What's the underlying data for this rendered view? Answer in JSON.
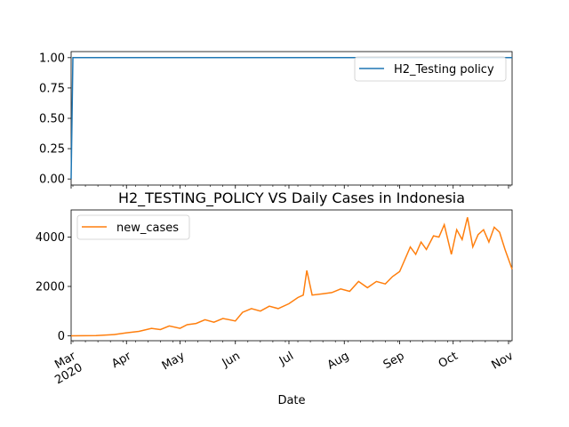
{
  "chart_data": [
    {
      "type": "line",
      "x_unit": "date",
      "ylim": [
        -0.05,
        1.05
      ],
      "yticks": [
        0.0,
        0.25,
        0.5,
        0.75,
        1.0
      ],
      "ytick_labels": [
        "0.00",
        "0.25",
        "0.50",
        "0.75",
        "1.00"
      ],
      "legend": "top-right",
      "grid": false,
      "series": [
        {
          "name": "H2_Testing policy",
          "color": "#1f77b4",
          "x": [
            "2020-03-01",
            "2020-03-02",
            "2020-11-03"
          ],
          "values": [
            0,
            1,
            1
          ]
        }
      ]
    },
    {
      "type": "line",
      "title": "H2_TESTING_POLICY VS Daily Cases in Indonesia",
      "xlabel": "Date",
      "x_unit": "date",
      "xlim": [
        "2020-03-01",
        "2020-11-03"
      ],
      "ylim": [
        -200,
        5100
      ],
      "yticks": [
        0,
        2000,
        4000
      ],
      "ytick_labels": [
        "0",
        "2000",
        "4000"
      ],
      "xtick_labels": [
        "Mar\n2020",
        "Apr",
        "May",
        "Jun",
        "Jul",
        "Aug",
        "Sep",
        "Oct",
        "Nov"
      ],
      "xtick_dates": [
        "2020-03-01",
        "2020-04-01",
        "2020-05-01",
        "2020-06-01",
        "2020-07-01",
        "2020-08-01",
        "2020-09-01",
        "2020-10-01",
        "2020-11-01"
      ],
      "legend": "top-left",
      "grid": false,
      "series": [
        {
          "name": "new_cases",
          "color": "#ff7f0e",
          "x": [
            "2020-03-01",
            "2020-03-15",
            "2020-03-25",
            "2020-04-01",
            "2020-04-08",
            "2020-04-15",
            "2020-04-20",
            "2020-04-25",
            "2020-05-01",
            "2020-05-05",
            "2020-05-10",
            "2020-05-15",
            "2020-05-20",
            "2020-05-25",
            "2020-06-01",
            "2020-06-05",
            "2020-06-10",
            "2020-06-15",
            "2020-06-20",
            "2020-06-25",
            "2020-07-01",
            "2020-07-06",
            "2020-07-09",
            "2020-07-11",
            "2020-07-14",
            "2020-07-20",
            "2020-07-25",
            "2020-07-30",
            "2020-08-04",
            "2020-08-09",
            "2020-08-14",
            "2020-08-19",
            "2020-08-24",
            "2020-08-28",
            "2020-09-01",
            "2020-09-04",
            "2020-09-07",
            "2020-09-10",
            "2020-09-13",
            "2020-09-16",
            "2020-09-20",
            "2020-09-23",
            "2020-09-26",
            "2020-09-30",
            "2020-10-03",
            "2020-10-06",
            "2020-10-09",
            "2020-10-12",
            "2020-10-15",
            "2020-10-18",
            "2020-10-21",
            "2020-10-24",
            "2020-10-27",
            "2020-10-30",
            "2020-11-01",
            "2020-11-03"
          ],
          "values": [
            0,
            5,
            50,
            120,
            180,
            300,
            250,
            400,
            300,
            450,
            500,
            650,
            550,
            700,
            600,
            950,
            1100,
            1000,
            1200,
            1100,
            1300,
            1550,
            1650,
            2650,
            1650,
            1700,
            1750,
            1900,
            1800,
            2200,
            1950,
            2200,
            2100,
            2400,
            2600,
            3100,
            3600,
            3300,
            3800,
            3500,
            4050,
            4000,
            4500,
            3300,
            4300,
            3900,
            4800,
            3600,
            4100,
            4300,
            3800,
            4400,
            4200,
            3500,
            3100,
            2700
          ]
        }
      ]
    }
  ]
}
